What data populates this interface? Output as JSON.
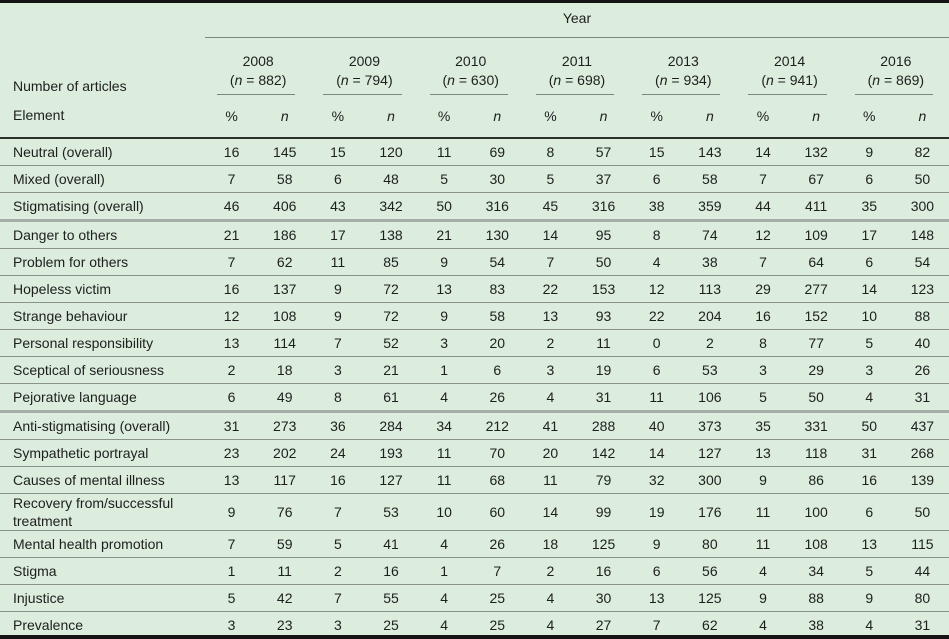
{
  "table": {
    "title": "Year",
    "row_header_top": "Number of articles",
    "row_header_bottom": "Element",
    "sub_headers": [
      "%",
      "n"
    ],
    "years": [
      {
        "year": "2008",
        "n": "882"
      },
      {
        "year": "2009",
        "n": "794"
      },
      {
        "year": "2010",
        "n": "630"
      },
      {
        "year": "2011",
        "n": "698"
      },
      {
        "year": "2013",
        "n": "934"
      },
      {
        "year": "2014",
        "n": "941"
      },
      {
        "year": "2016",
        "n": "869"
      }
    ],
    "rows": [
      {
        "element": "Neutral (overall)",
        "group_end": false,
        "values": [
          [
            16,
            145
          ],
          [
            15,
            120
          ],
          [
            11,
            69
          ],
          [
            8,
            57
          ],
          [
            15,
            143
          ],
          [
            14,
            132
          ],
          [
            9,
            82
          ]
        ]
      },
      {
        "element": "Mixed (overall)",
        "group_end": false,
        "values": [
          [
            7,
            58
          ],
          [
            6,
            48
          ],
          [
            5,
            30
          ],
          [
            5,
            37
          ],
          [
            6,
            58
          ],
          [
            7,
            67
          ],
          [
            6,
            50
          ]
        ]
      },
      {
        "element": "Stigmatising (overall)",
        "group_end": true,
        "values": [
          [
            46,
            406
          ],
          [
            43,
            342
          ],
          [
            50,
            316
          ],
          [
            45,
            316
          ],
          [
            38,
            359
          ],
          [
            44,
            411
          ],
          [
            35,
            300
          ]
        ]
      },
      {
        "element": "Danger to others",
        "group_end": false,
        "values": [
          [
            21,
            186
          ],
          [
            17,
            138
          ],
          [
            21,
            130
          ],
          [
            14,
            95
          ],
          [
            8,
            74
          ],
          [
            12,
            109
          ],
          [
            17,
            148
          ]
        ]
      },
      {
        "element": "Problem for others",
        "group_end": false,
        "values": [
          [
            7,
            62
          ],
          [
            11,
            85
          ],
          [
            9,
            54
          ],
          [
            7,
            50
          ],
          [
            4,
            38
          ],
          [
            7,
            64
          ],
          [
            6,
            54
          ]
        ]
      },
      {
        "element": "Hopeless victim",
        "group_end": false,
        "values": [
          [
            16,
            137
          ],
          [
            9,
            72
          ],
          [
            13,
            83
          ],
          [
            22,
            153
          ],
          [
            12,
            113
          ],
          [
            29,
            277
          ],
          [
            14,
            123
          ]
        ]
      },
      {
        "element": "Strange behaviour",
        "group_end": false,
        "values": [
          [
            12,
            108
          ],
          [
            9,
            72
          ],
          [
            9,
            58
          ],
          [
            13,
            93
          ],
          [
            22,
            204
          ],
          [
            16,
            152
          ],
          [
            10,
            88
          ]
        ]
      },
      {
        "element": "Personal responsibility",
        "group_end": false,
        "values": [
          [
            13,
            114
          ],
          [
            7,
            52
          ],
          [
            3,
            20
          ],
          [
            2,
            11
          ],
          [
            0,
            2
          ],
          [
            8,
            77
          ],
          [
            5,
            40
          ]
        ]
      },
      {
        "element": "Sceptical of seriousness",
        "group_end": false,
        "values": [
          [
            2,
            18
          ],
          [
            3,
            21
          ],
          [
            1,
            6
          ],
          [
            3,
            19
          ],
          [
            6,
            53
          ],
          [
            3,
            29
          ],
          [
            3,
            26
          ]
        ]
      },
      {
        "element": "Pejorative language",
        "group_end": true,
        "values": [
          [
            6,
            49
          ],
          [
            8,
            61
          ],
          [
            4,
            26
          ],
          [
            4,
            31
          ],
          [
            11,
            106
          ],
          [
            5,
            50
          ],
          [
            4,
            31
          ]
        ]
      },
      {
        "element": "Anti-stigmatising (overall)",
        "group_end": false,
        "values": [
          [
            31,
            273
          ],
          [
            36,
            284
          ],
          [
            34,
            212
          ],
          [
            41,
            288
          ],
          [
            40,
            373
          ],
          [
            35,
            331
          ],
          [
            50,
            437
          ]
        ]
      },
      {
        "element": "Sympathetic portrayal",
        "group_end": false,
        "values": [
          [
            23,
            202
          ],
          [
            24,
            193
          ],
          [
            11,
            70
          ],
          [
            20,
            142
          ],
          [
            14,
            127
          ],
          [
            13,
            118
          ],
          [
            31,
            268
          ]
        ]
      },
      {
        "element": "Causes of mental illness",
        "group_end": false,
        "values": [
          [
            13,
            117
          ],
          [
            16,
            127
          ],
          [
            11,
            68
          ],
          [
            11,
            79
          ],
          [
            32,
            300
          ],
          [
            9,
            86
          ],
          [
            16,
            139
          ]
        ]
      },
      {
        "element": "Recovery from/successful treatment",
        "group_end": false,
        "values": [
          [
            9,
            76
          ],
          [
            7,
            53
          ],
          [
            10,
            60
          ],
          [
            14,
            99
          ],
          [
            19,
            176
          ],
          [
            11,
            100
          ],
          [
            6,
            50
          ]
        ]
      },
      {
        "element": "Mental health promotion",
        "group_end": false,
        "values": [
          [
            7,
            59
          ],
          [
            5,
            41
          ],
          [
            4,
            26
          ],
          [
            18,
            125
          ],
          [
            9,
            80
          ],
          [
            11,
            108
          ],
          [
            13,
            115
          ]
        ]
      },
      {
        "element": "Stigma",
        "group_end": false,
        "values": [
          [
            1,
            11
          ],
          [
            2,
            16
          ],
          [
            1,
            7
          ],
          [
            2,
            16
          ],
          [
            6,
            56
          ],
          [
            4,
            34
          ],
          [
            5,
            44
          ]
        ]
      },
      {
        "element": "Injustice",
        "group_end": false,
        "values": [
          [
            5,
            42
          ],
          [
            7,
            55
          ],
          [
            4,
            25
          ],
          [
            4,
            30
          ],
          [
            13,
            125
          ],
          [
            9,
            88
          ],
          [
            9,
            80
          ]
        ]
      },
      {
        "element": "Prevalence",
        "group_end": false,
        "values": [
          [
            3,
            23
          ],
          [
            3,
            25
          ],
          [
            4,
            25
          ],
          [
            4,
            27
          ],
          [
            7,
            62
          ],
          [
            4,
            38
          ],
          [
            4,
            31
          ]
        ]
      }
    ],
    "colors": {
      "background": "#dcecdd",
      "outer_border": "#141414",
      "header_rule": "#2b302b",
      "row_rule": "#8b928b",
      "group_rule": "#a6ada6",
      "text": "#1d1f1d"
    }
  }
}
